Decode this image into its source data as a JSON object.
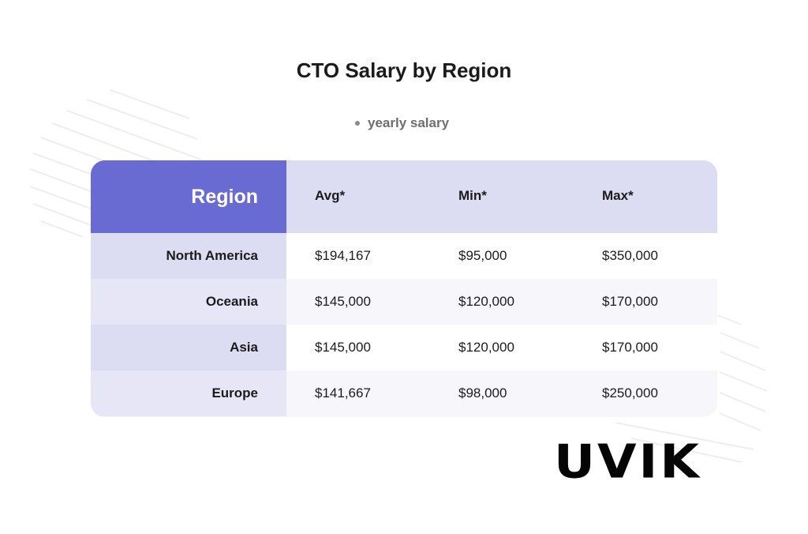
{
  "title": "CTO Salary by Region",
  "legend": "yearly salary",
  "table": {
    "headers": {
      "region": "Region",
      "avg": "Avg*",
      "min": "Min*",
      "max": "Max*"
    },
    "rows": [
      {
        "region": "North America",
        "avg": "$194,167",
        "min": "$95,000",
        "max": "$350,000"
      },
      {
        "region": "Oceania",
        "avg": "$145,000",
        "min": "$120,000",
        "max": "$170,000"
      },
      {
        "region": "Asia",
        "avg": "$145,000",
        "min": "$120,000",
        "max": "$170,000"
      },
      {
        "region": "Europe",
        "avg": "$141,667",
        "min": "$98,000",
        "max": "$250,000"
      }
    ]
  },
  "logo": "UVIK",
  "colors": {
    "header_accent": "#6a6ad3",
    "header_bg": "#dcdcf3",
    "row_alt_bg": "#f6f6fb"
  }
}
